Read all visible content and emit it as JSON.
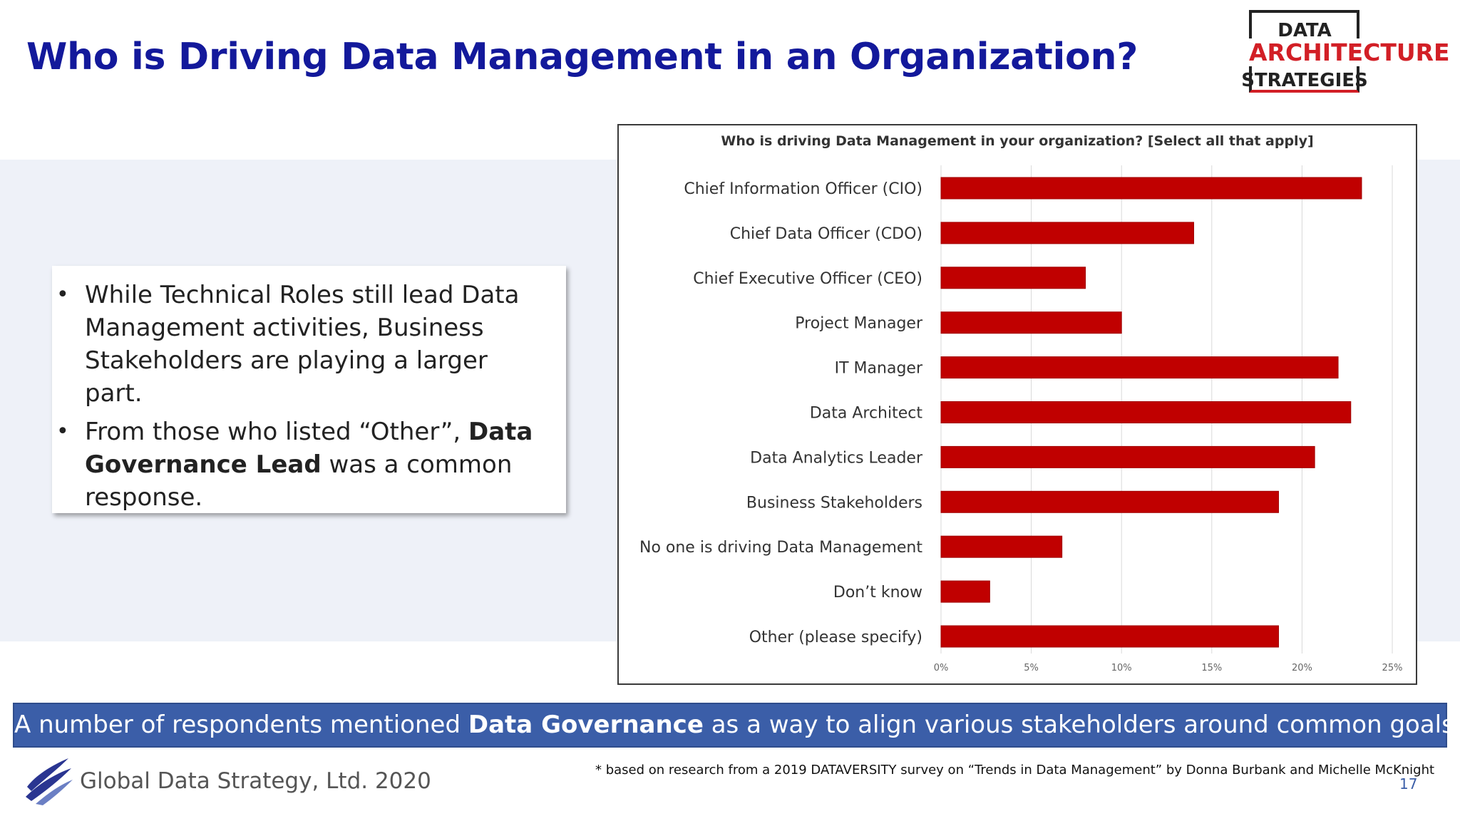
{
  "slide": {
    "title": "Who is Driving Data Management in an Organization?",
    "page_number": "17"
  },
  "logo": {
    "line1": "DATA",
    "line2": "ARCHITECTURE",
    "line3": "STRATEGIES"
  },
  "callout": {
    "bullet1": "While Technical Roles still lead Data Management activities, Business Stakeholders are playing a larger part.",
    "bullet2_prefix": "From those who listed “Other”, ",
    "bullet2_bold": "Data Governance Lead",
    "bullet2_suffix": " was a common response."
  },
  "banner": {
    "prefix": "A number of respondents mentioned ",
    "bold": "Data Governance",
    "suffix": " as a way to align various stakeholders around common goals"
  },
  "footer": {
    "company": "Global Data Strategy, Ltd. 2020",
    "footnote": "* based on research from a 2019 DATAVERSITY survey on “Trends in Data Management” by Donna Burbank and Michelle McKnight"
  },
  "colors": {
    "title": "#13199b",
    "bar": "#c00000",
    "banner": "#3b5ea8",
    "logo_red": "#d21f26"
  },
  "chart_data": {
    "type": "bar",
    "orientation": "horizontal",
    "title": "Who is driving Data Management in your organization? [Select all that apply]",
    "categories": [
      "Chief Information Officer (CIO)",
      "Chief Data Officer (CDO)",
      "Chief Executive Officer (CEO)",
      "Project Manager",
      "IT Manager",
      "Data Architect",
      "Data Analytics Leader",
      "Business Stakeholders",
      "No one is driving Data Management",
      "Don’t know",
      "Other (please specify)"
    ],
    "values": [
      23.3,
      14.0,
      8.0,
      10.0,
      22.0,
      22.7,
      20.7,
      18.7,
      6.7,
      2.7,
      18.7
    ],
    "xlim": [
      0,
      25
    ],
    "ticks": [
      "0%",
      "5%",
      "10%",
      "15%",
      "20%",
      "25%"
    ],
    "gridlines": true
  }
}
